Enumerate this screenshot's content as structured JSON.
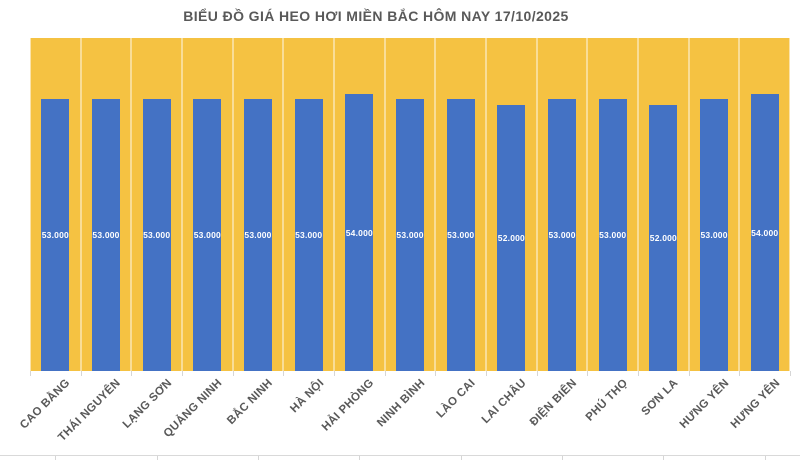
{
  "chart_data": {
    "type": "bar",
    "title": "BIỂU ĐỒ GIÁ HEO HƠI MIỀN BẮC HÔM NAY 17/10/2025",
    "categories": [
      "CAO BẰNG",
      "THÁI NGUYÊN",
      "LẠNG SƠN",
      "QUẢNG NINH",
      "BẮC NINH",
      "HÀ NỘI",
      "HẢI PHÒNG",
      "NINH BÌNH",
      "LÀO CAI",
      "LAI CHÂU",
      "ĐIỆN BIÊN",
      "PHÚ THỌ",
      "SƠN LA",
      "HƯNG YÊN",
      "HƯNG YÊN"
    ],
    "values": [
      53000,
      53000,
      53000,
      53000,
      53000,
      53000,
      54000,
      53000,
      53000,
      52000,
      53000,
      53000,
      52000,
      53000,
      54000
    ],
    "value_labels": [
      "53.000",
      "53.000",
      "53.000",
      "53.000",
      "53.000",
      "53.000",
      "54.000",
      "53.000",
      "53.000",
      "52.000",
      "53.000",
      "53.000",
      "52.000",
      "53.000",
      "54.000"
    ],
    "xlabel": "",
    "ylabel": "",
    "ylim": [
      0,
      65000
    ],
    "legend": "none",
    "grid": "vertical-category-separators",
    "colors": {
      "bar": "#4472C4",
      "plot_background": "#F5C242",
      "gridline": "rgba(255,255,255,0.45)",
      "value_label_text": "#FFFFFF",
      "axis_text": "#595959",
      "title_text": "#595959"
    }
  }
}
